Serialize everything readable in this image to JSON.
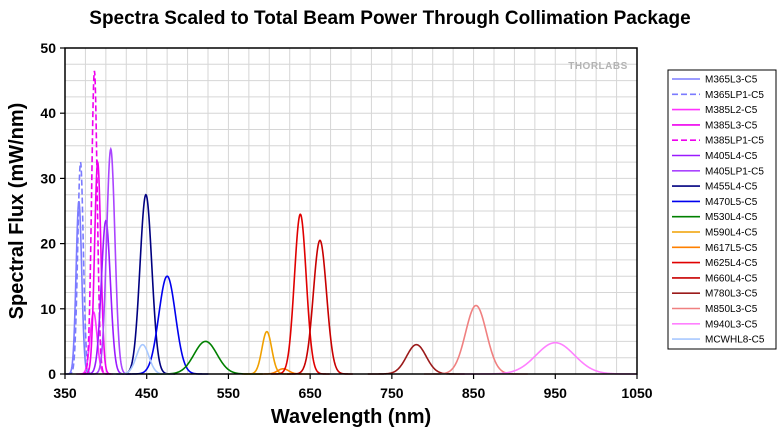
{
  "chart_data": {
    "type": "line",
    "title": "Spectra Scaled to Total Beam Power Through Collimation Package",
    "xlabel": "Wavelength (nm)",
    "ylabel": "Spectral Flux (mW/nm)",
    "xlim": [
      350,
      1050
    ],
    "ylim": [
      0,
      50
    ],
    "xticks": [
      350,
      450,
      550,
      650,
      750,
      850,
      950,
      1050
    ],
    "yticks": [
      0,
      10,
      20,
      30,
      40,
      50
    ],
    "grid": true,
    "legend_position": "right",
    "watermark": "THORLABS",
    "series": [
      {
        "name": "M365L3-C5",
        "color": "#7b7bff",
        "dash": false,
        "peak": 26.5,
        "center": 367,
        "fwhm": 8
      },
      {
        "name": "M365LP1-C5",
        "color": "#7b7bff",
        "dash": true,
        "peak": 32.5,
        "center": 369,
        "fwhm": 8
      },
      {
        "name": "M385L2-C5",
        "color": "#ff33ff",
        "dash": false,
        "peak": 9.5,
        "center": 385,
        "fwhm": 10
      },
      {
        "name": "M385L3-C5",
        "color": "#ee00ee",
        "dash": false,
        "peak": 32.5,
        "center": 390,
        "fwhm": 9
      },
      {
        "name": "M385LP1-C5",
        "color": "#ee00ee",
        "dash": true,
        "peak": 46.5,
        "center": 386,
        "fwhm": 8
      },
      {
        "name": "M405L4-C5",
        "color": "#9a1aff",
        "dash": false,
        "peak": 23.5,
        "center": 400,
        "fwhm": 13
      },
      {
        "name": "M405LP1-C5",
        "color": "#aa44ff",
        "dash": false,
        "peak": 34.5,
        "center": 406,
        "fwhm": 12
      },
      {
        "name": "M455L4-C5",
        "color": "#000080",
        "dash": false,
        "peak": 27.5,
        "center": 449,
        "fwhm": 17
      },
      {
        "name": "M470L5-C5",
        "color": "#0000ee",
        "dash": false,
        "peak": 15,
        "center": 475,
        "fwhm": 24
      },
      {
        "name": "M530L4-C5",
        "color": "#008000",
        "dash": false,
        "peak": 5,
        "center": 522,
        "fwhm": 33
      },
      {
        "name": "M590L4-C5",
        "color": "#f0a000",
        "dash": false,
        "peak": 6.5,
        "center": 597,
        "fwhm": 14
      },
      {
        "name": "M617L5-C5",
        "color": "#ff8000",
        "dash": false,
        "peak": 0.8,
        "center": 617,
        "fwhm": 16
      },
      {
        "name": "M625L4-C5",
        "color": "#e00000",
        "dash": false,
        "peak": 24.5,
        "center": 638,
        "fwhm": 17
      },
      {
        "name": "M660L4-C5",
        "color": "#c80000",
        "dash": false,
        "peak": 20.5,
        "center": 662,
        "fwhm": 19
      },
      {
        "name": "M780L3-C5",
        "color": "#9b1a1a",
        "dash": false,
        "peak": 4.5,
        "center": 780,
        "fwhm": 28
      },
      {
        "name": "M850L3-C5",
        "color": "#f08080",
        "dash": false,
        "peak": 10.5,
        "center": 853,
        "fwhm": 30
      },
      {
        "name": "M940L3-C5",
        "color": "#ff80ff",
        "dash": false,
        "peak": 4.8,
        "center": 950,
        "fwhm": 55
      },
      {
        "name": "MCWHL8-C5",
        "color": "#a8c8ff",
        "dash": false,
        "peak": 4.5,
        "center": 445,
        "fwhm": 18
      }
    ]
  }
}
